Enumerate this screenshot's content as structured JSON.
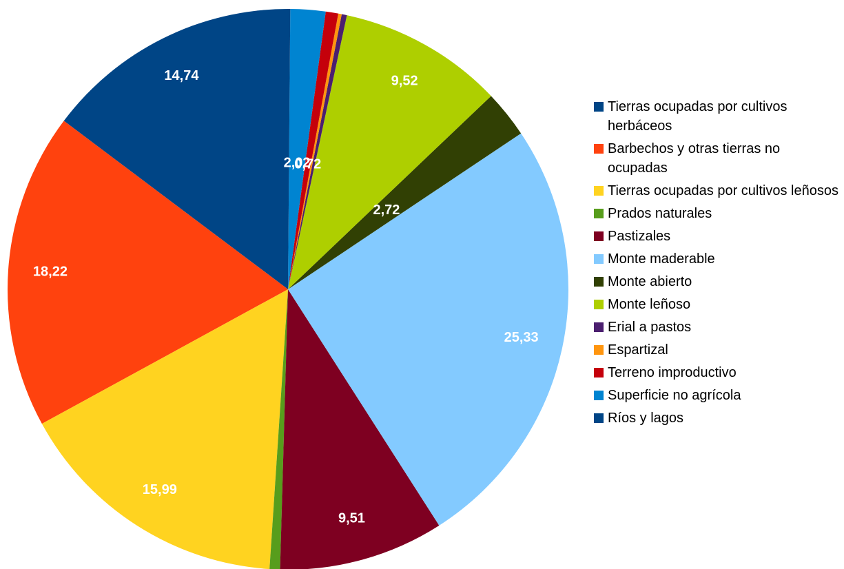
{
  "chart_data": {
    "type": "pie",
    "categories": [
      "Tierras ocupadas por cultivos herbáceos",
      "Barbechos y otras tierras no ocupadas",
      "Tierras ocupadas por cultivos leñosos",
      "Prados naturales",
      "Pastizales",
      "Monte maderable",
      "Monte abierto",
      "Monte leñoso",
      "Erial a pastos",
      "Espartizal",
      "Terreno improductivo",
      "Superficie no agrícola",
      "Ríos y lagos"
    ],
    "values": [
      14.74,
      18.22,
      15.99,
      0.6,
      9.51,
      25.33,
      2.72,
      9.52,
      0.3,
      0.2,
      0.72,
      2.02,
      0.13
    ],
    "value_labels": [
      "14,74",
      "18,22",
      "15,99",
      null,
      "9,51",
      "25,33",
      "2,72",
      "9,52",
      null,
      null,
      "0,72",
      "2,02",
      null
    ],
    "colors": [
      "#004586",
      "#ff420e",
      "#ffd320",
      "#579d1c",
      "#7e0021",
      "#83caff",
      "#314004",
      "#aecf00",
      "#4b1f6f",
      "#ff950e",
      "#c5000b",
      "#0084d1",
      "#004586"
    ],
    "legend": "right"
  }
}
